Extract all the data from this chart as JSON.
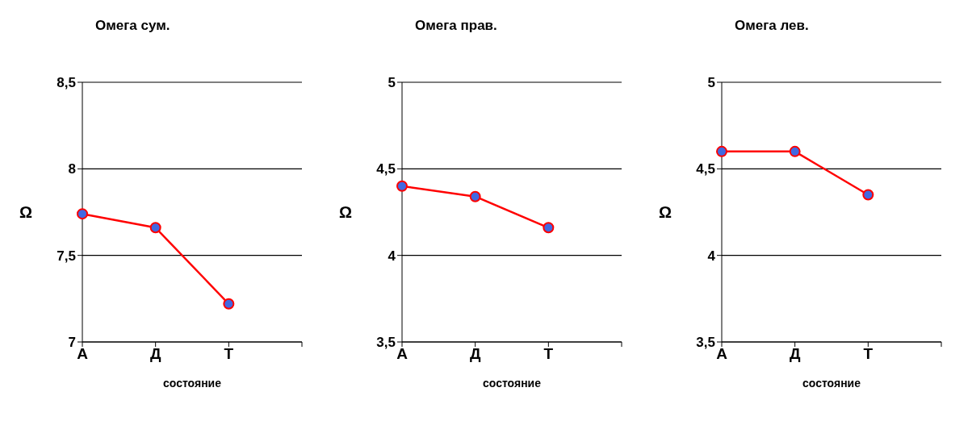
{
  "chart_data": [
    {
      "type": "line",
      "title": "Омега сум.",
      "xlabel": "состояние",
      "ylabel": "Ω",
      "categories": [
        "А",
        "Д",
        "Т",
        null
      ],
      "series": [
        {
          "color": "#ff0000",
          "values": [
            7.74,
            7.66,
            7.22,
            null
          ]
        }
      ],
      "ylim": [
        7,
        8.5
      ],
      "yticks": [
        7,
        {
          "value": 7.5,
          "label": "7,5"
        },
        8,
        {
          "value": 8.5,
          "label": "8,5"
        }
      ],
      "grid": "y",
      "marker": "circle",
      "legend": false
    },
    {
      "type": "line",
      "title": "Омега прав.",
      "xlabel": "состояние",
      "ylabel": "Ω",
      "categories": [
        "А",
        "Д",
        "Т",
        null
      ],
      "series": [
        {
          "color": "#ff0000",
          "values": [
            4.4,
            4.34,
            4.16,
            null
          ]
        }
      ],
      "ylim": [
        3.5,
        5
      ],
      "yticks": [
        {
          "value": 3.5,
          "label": "3,5"
        },
        4,
        {
          "value": 4.5,
          "label": "4,5"
        },
        5
      ],
      "grid": "y",
      "marker": "circle",
      "legend": false
    },
    {
      "type": "line",
      "title": "Омега лев.",
      "xlabel": "состояние",
      "ylabel": "Ω",
      "categories": [
        "А",
        "Д",
        "Т",
        null
      ],
      "series": [
        {
          "color": "#ff0000",
          "values": [
            4.6,
            4.6,
            4.35,
            null
          ]
        }
      ],
      "ylim": [
        3.5,
        5
      ],
      "yticks": [
        {
          "value": 3.5,
          "label": "3,5"
        },
        4,
        {
          "value": 4.5,
          "label": "4,5"
        },
        5
      ],
      "grid": "y",
      "marker": "circle",
      "legend": false
    }
  ]
}
